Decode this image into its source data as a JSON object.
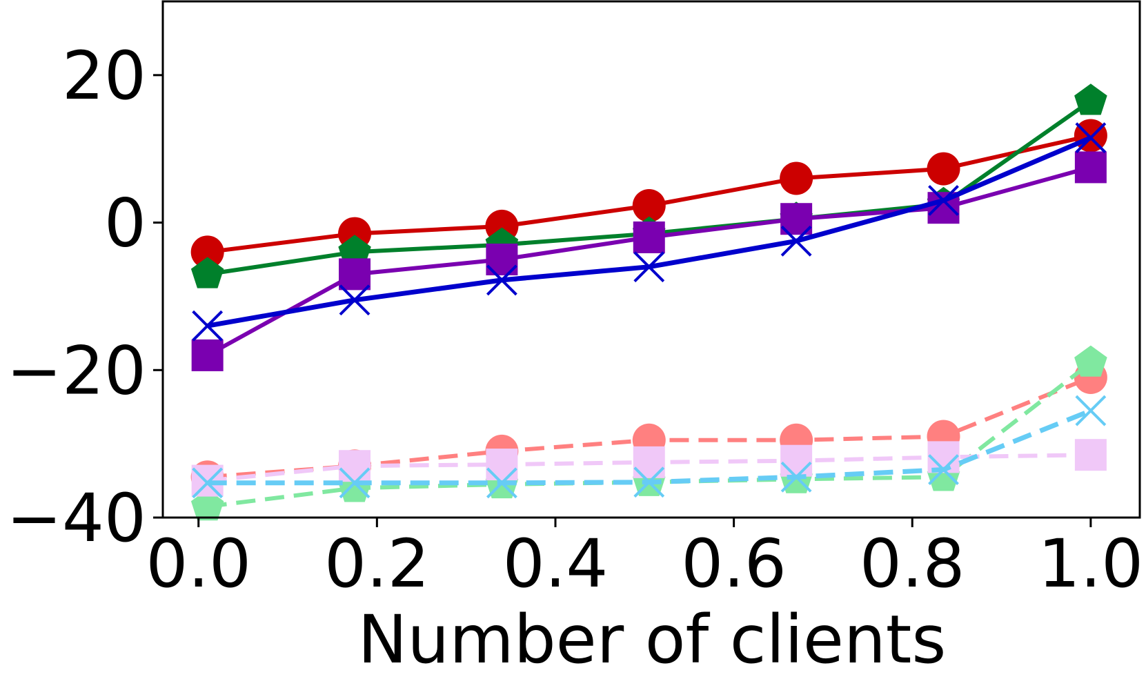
{
  "chart_data": {
    "type": "line",
    "title": "",
    "xlabel": "Number of clients",
    "ylabel": "",
    "xlim": [
      -0.04,
      1.055
    ],
    "ylim": [
      -40,
      30
    ],
    "grid": false,
    "x": [
      0.01,
      0.175,
      0.34,
      0.505,
      0.67,
      0.835,
      1.0
    ],
    "xticks": [
      0.0,
      0.2,
      0.4,
      0.6,
      0.8,
      1.0
    ],
    "xtick_labels": [
      "0.0",
      "0.2",
      "0.4",
      "0.6",
      "0.8",
      "1.0"
    ],
    "yticks": [
      -40,
      -20,
      0,
      20
    ],
    "ytick_labels": [
      "−40",
      "−20",
      "0",
      "20"
    ],
    "series": [
      {
        "color": "#cc0000",
        "marker": "circle",
        "dashed": false,
        "values": [
          -4.0,
          -1.5,
          -0.5,
          2.3,
          6.0,
          7.3,
          11.8
        ]
      },
      {
        "color": "#00802b",
        "marker": "pentagon",
        "dashed": false,
        "values": [
          -7.0,
          -4.0,
          -3.0,
          -1.5,
          0.5,
          2.5,
          16.5
        ]
      },
      {
        "color": "#7a00b0",
        "marker": "square",
        "dashed": false,
        "values": [
          -18.0,
          -7.0,
          -5.0,
          -2.0,
          0.5,
          2.0,
          7.5
        ]
      },
      {
        "color": "#0000cc",
        "marker": "x",
        "dashed": false,
        "values": [
          -14.0,
          -10.5,
          -7.8,
          -6.0,
          -2.5,
          3.0,
          11.5
        ]
      },
      {
        "color": "#ff8080",
        "marker": "circle",
        "dashed": true,
        "values": [
          -34.5,
          -33.0,
          -31.0,
          -29.5,
          -29.5,
          -29.0,
          -21.0
        ]
      },
      {
        "color": "#80e8a0",
        "marker": "pentagon",
        "dashed": true,
        "values": [
          -38.5,
          -36.0,
          -35.5,
          -35.2,
          -34.8,
          -34.5,
          -19.0
        ]
      },
      {
        "color": "#f0c8f8",
        "marker": "square",
        "dashed": true,
        "values": [
          -35.0,
          -33.0,
          -32.8,
          -32.5,
          -32.3,
          -31.8,
          -31.5
        ]
      },
      {
        "color": "#66ccf5",
        "marker": "x",
        "dashed": true,
        "values": [
          -35.3,
          -35.3,
          -35.3,
          -35.2,
          -34.5,
          -33.5,
          -25.5
        ]
      }
    ]
  }
}
